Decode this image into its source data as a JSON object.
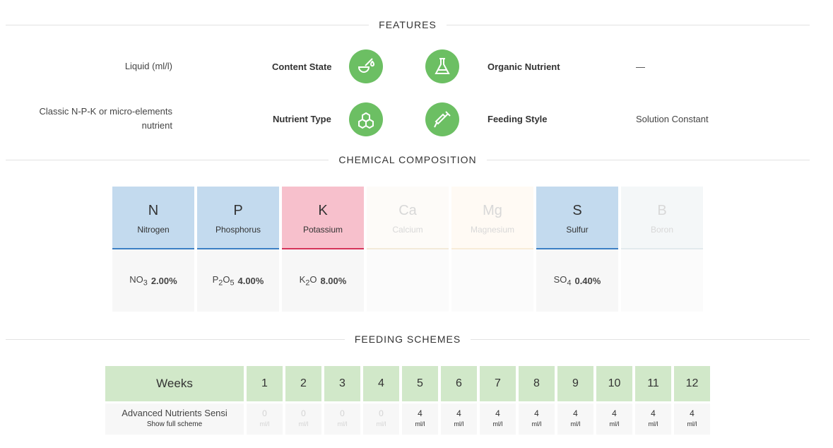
{
  "sections": {
    "features": "FEATURES",
    "chemical": "CHEMICAL COMPOSITION",
    "feeding": "FEEDING SCHEMES"
  },
  "features": {
    "row1": {
      "left_value": "Liquid (ml/l)",
      "left_label": "Content State",
      "left_icon": "dropper-bowl-icon",
      "right_icon": "flask-icon",
      "right_label": "Organic Nutrient",
      "right_value": "—"
    },
    "row2": {
      "left_value_line1": "Classic N-P-K or micro-elements",
      "left_value_line2": "nutrient",
      "left_label": "Nutrient Type",
      "left_icon": "molecule-icon",
      "right_icon": "syringe-icon",
      "right_label": "Feeding Style",
      "right_value": "Solution Constant"
    },
    "icon_color": "#6cbf63"
  },
  "chemical": [
    {
      "symbol": "N",
      "name": "Nitrogen",
      "compound": "NO",
      "sub": "3",
      "value": "2.00%",
      "state": "blue"
    },
    {
      "symbol": "P",
      "name": "Phosphorus",
      "compound": "P",
      "sub": "2",
      "compound2": "O",
      "sub2": "5",
      "value": "4.00%",
      "state": "blue"
    },
    {
      "symbol": "K",
      "name": "Potassium",
      "compound": "K",
      "sub": "2",
      "compound2": "O",
      "value": "8.00%",
      "state": "pink"
    },
    {
      "symbol": "Ca",
      "name": "Calcium",
      "state": "dim"
    },
    {
      "symbol": "Mg",
      "name": "Magnesium",
      "state": "dim"
    },
    {
      "symbol": "S",
      "name": "Sulfur",
      "compound": "SO",
      "sub": "4",
      "value": "0.40%",
      "state": "blue"
    },
    {
      "symbol": "B",
      "name": "Boron",
      "state": "dim"
    }
  ],
  "feeding": {
    "weeks_label": "Weeks",
    "weeks": [
      "1",
      "2",
      "3",
      "4",
      "5",
      "6",
      "7",
      "8",
      "9",
      "10",
      "11",
      "12"
    ],
    "product": "Advanced Nutrients Sensi",
    "show_link": "Show full scheme",
    "values": [
      "0",
      "0",
      "0",
      "0",
      "4",
      "4",
      "4",
      "4",
      "4",
      "4",
      "4",
      "4"
    ],
    "unit": "ml/l"
  }
}
